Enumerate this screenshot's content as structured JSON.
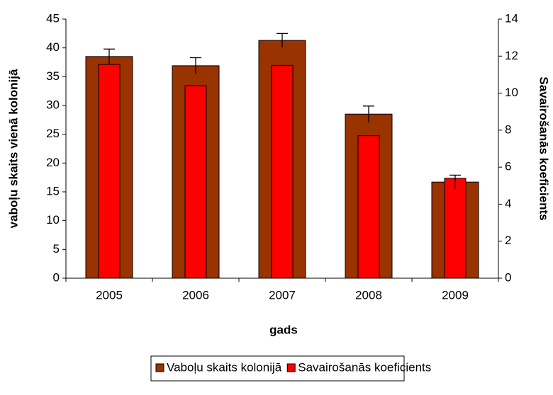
{
  "chart_data": {
    "type": "bar",
    "x_label": "gads",
    "y_label": "vaboļu skaits vienā kolonijā",
    "y2_label": "Savairošanās koeficients",
    "categories": [
      "2005",
      "2006",
      "2007",
      "2008",
      "2009"
    ],
    "series": [
      {
        "name": "Vaboļu skaits kolonijā",
        "color": "#993300",
        "values": [
          38.5,
          36.9,
          41.3,
          28.5,
          16.7
        ],
        "errors": [
          1.3,
          1.4,
          1.2,
          1.4,
          1.2
        ]
      },
      {
        "name": "Savairošanās koeficients",
        "color": "#ff0000",
        "axis": "y2",
        "values": [
          11.55,
          10.4,
          11.5,
          7.7,
          5.4
        ]
      }
    ],
    "ylim": [
      0,
      45
    ],
    "yticks": [
      0,
      5,
      10,
      15,
      20,
      25,
      30,
      35,
      40,
      45
    ],
    "y2lim": [
      0,
      14
    ],
    "y2ticks": [
      0,
      2,
      4,
      6,
      8,
      10,
      12,
      14
    ],
    "legend": "bottom"
  }
}
